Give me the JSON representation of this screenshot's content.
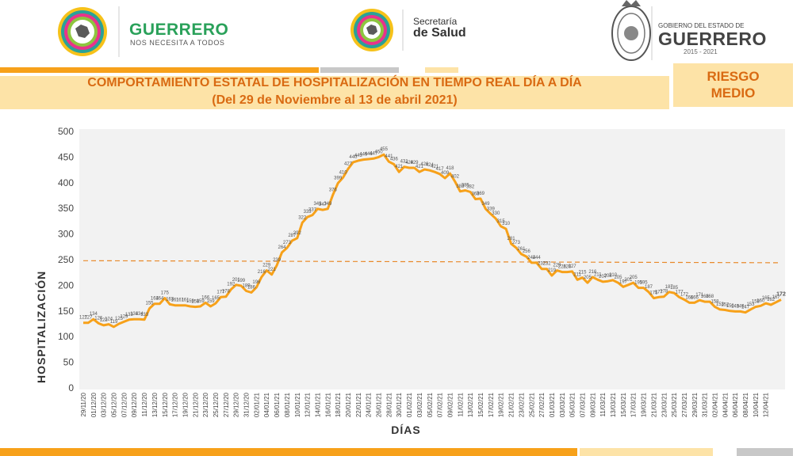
{
  "header": {
    "guerrero_brand": "GUERRERO",
    "guerrero_tagline": "NOS NECESITA A TODOS",
    "salud_line1": "Secretaría",
    "salud_line2": "de Salud",
    "gobierno_line1": "GOBIERNO DEL ESTADO DE",
    "gobierno_line2": "GUERRERO",
    "gobierno_years": "2015 - 2021"
  },
  "title": {
    "line1": "COMPORTAMIENTO ESTATAL DE HOSPITALIZACIÓN EN TIEMPO REAL DÍA A DÍA",
    "line2": "(Del 29 de Noviembre al 13 de abril 2021)"
  },
  "risk": {
    "line1": "RIESGO",
    "line2": "MEDIO"
  },
  "colors": {
    "accent": "#f7a11a",
    "title_text": "#d96a12",
    "title_bg": "#fde3a7",
    "line": "#f7a11a",
    "reference_line": "#e8892a",
    "grid_bg": "#f2f2f2"
  },
  "chart_data": {
    "type": "line",
    "xlabel": "DÍAS",
    "ylabel": "HOSPITALIZACIÓN",
    "ylim": [
      0,
      500
    ],
    "yticks": [
      0,
      50,
      100,
      150,
      200,
      250,
      300,
      350,
      400,
      450,
      500
    ],
    "reference_line": {
      "y_start": 248,
      "y_end": 244,
      "style": "dashed"
    },
    "x_tick_labels": [
      "29/11/20",
      "01/12/20",
      "03/12/20",
      "05/12/20",
      "07/12/20",
      "09/12/20",
      "11/12/20",
      "13/12/20",
      "15/12/20",
      "17/12/20",
      "19/12/20",
      "21/12/20",
      "23/12/20",
      "25/12/20",
      "27/12/20",
      "29/12/20",
      "31/12/20",
      "02/01/21",
      "04/01/21",
      "06/01/21",
      "08/01/21",
      "10/01/21",
      "12/01/21",
      "14/01/21",
      "16/01/21",
      "18/01/21",
      "20/01/21",
      "22/01/21",
      "24/01/21",
      "26/01/21",
      "28/01/21",
      "30/01/21",
      "01/02/21",
      "03/02/21",
      "05/02/21",
      "07/02/21",
      "09/02/21",
      "11/02/21",
      "13/02/21",
      "15/02/21",
      "17/02/21",
      "19/02/21",
      "21/02/21",
      "23/02/21",
      "25/02/21",
      "27/02/21",
      "01/03/21",
      "03/03/21",
      "05/03/21",
      "07/03/21",
      "09/03/21",
      "11/03/21",
      "13/03/21",
      "15/03/21",
      "17/03/21",
      "19/03/21",
      "21/03/21",
      "23/03/21",
      "25/03/21",
      "27/03/21",
      "29/03/21",
      "31/03/21",
      "02/04/21",
      "04/04/21",
      "06/04/21",
      "08/04/21",
      "10/04/21",
      "12/04/21"
    ],
    "values": [
      127,
      127,
      134,
      126,
      122,
      124,
      119,
      125,
      129,
      133,
      134,
      134,
      133,
      155,
      164,
      164,
      175,
      163,
      161,
      161,
      161,
      159,
      158,
      159,
      166,
      159,
      165,
      177,
      178,
      192,
      201,
      199,
      189,
      186,
      196,
      216,
      229,
      221,
      239,
      264,
      273,
      287,
      292,
      322,
      333,
      337,
      349,
      347,
      349,
      376,
      399,
      410,
      427,
      440,
      443,
      445,
      446,
      447,
      450,
      455,
      441,
      436,
      421,
      431,
      429,
      429,
      421,
      426,
      424,
      421,
      417,
      409,
      418,
      402,
      383,
      385,
      382,
      368,
      369,
      349,
      339,
      330,
      315,
      310,
      281,
      273,
      261,
      256,
      244,
      244,
      232,
      232,
      219,
      229,
      226,
      226,
      227,
      211,
      215,
      205,
      216,
      211,
      207,
      208,
      210,
      205,
      197,
      201,
      205,
      195,
      195,
      187,
      175,
      177,
      178,
      187,
      185,
      177,
      172,
      166,
      166,
      171,
      168,
      168,
      158,
      153,
      152,
      150,
      149,
      149,
      147,
      153,
      158,
      160,
      165,
      162,
      167,
      172
    ]
  }
}
